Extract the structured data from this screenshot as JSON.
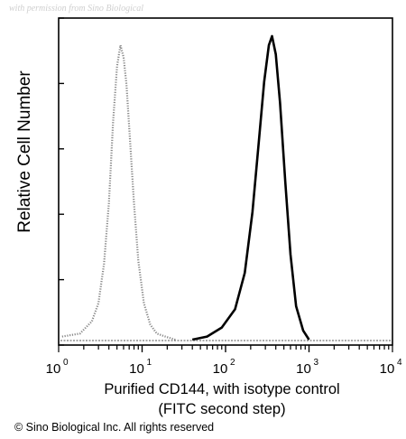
{
  "watermark": "with permission from Sino Biological",
  "footer": "© Sino Biological Inc. All rights reserved",
  "chart_data": {
    "type": "area",
    "xlabel_line1": "Purified CD144, with isotype control",
    "xlabel_line2": "(FITC second step)",
    "ylabel": "Relative Cell Number",
    "xscale": "log",
    "xlim": [
      1,
      10000
    ],
    "x_ticks": [
      {
        "base": "10",
        "exp": "0",
        "value": 1
      },
      {
        "base": "10",
        "exp": "1",
        "value": 10
      },
      {
        "base": "10",
        "exp": "2",
        "value": 100
      },
      {
        "base": "10",
        "exp": "3",
        "value": 1000
      },
      {
        "base": "10",
        "exp": "4",
        "value": 10000
      }
    ],
    "ylim": [
      0,
      1
    ],
    "grid": false,
    "legend": "none",
    "series": [
      {
        "style": "dotted",
        "color": "#888888",
        "x": [
          1.1,
          1.8,
          2.5,
          3.0,
          3.5,
          4.0,
          4.5,
          5.0,
          5.5,
          6.0,
          6.5,
          7.0,
          8.0,
          9.0,
          10.5,
          12.5,
          15,
          19,
          25
        ],
        "y": [
          0.01,
          0.02,
          0.06,
          0.12,
          0.25,
          0.45,
          0.72,
          0.9,
          0.97,
          0.93,
          0.84,
          0.7,
          0.45,
          0.26,
          0.12,
          0.05,
          0.02,
          0.01,
          0.0
        ]
      },
      {
        "style": "solid",
        "color": "#000000",
        "x": [
          40,
          60,
          90,
          130,
          170,
          210,
          250,
          290,
          330,
          360,
          400,
          450,
          520,
          600,
          700,
          850,
          1000
        ],
        "y": [
          0.0,
          0.01,
          0.04,
          0.1,
          0.22,
          0.42,
          0.65,
          0.85,
          0.97,
          1.0,
          0.94,
          0.78,
          0.52,
          0.28,
          0.11,
          0.03,
          0.0
        ]
      }
    ]
  }
}
